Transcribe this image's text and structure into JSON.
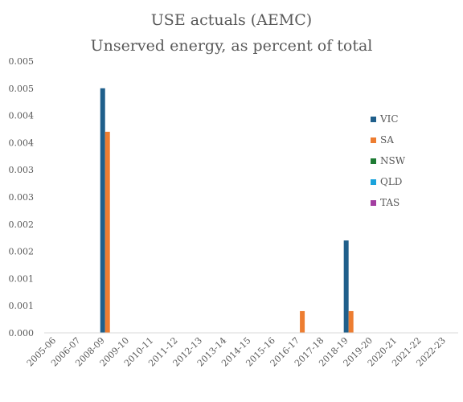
{
  "chart_data": {
    "type": "bar",
    "title": "USE actuals (AEMC)",
    "subtitle": "Unserved energy, as percent of total",
    "xlabel": "",
    "ylabel": "",
    "categories": [
      "2005-06",
      "2006-07",
      "2008-09",
      "2009-10",
      "2010-11",
      "2011-12",
      "2012-13",
      "2013-14",
      "2014-15",
      "2015-16",
      "2016-17",
      "2017-18",
      "2018-19",
      "2019-20",
      "2020-21",
      "2021-22",
      "2022-23"
    ],
    "y_tick_values": [
      0,
      0.0005,
      0.001,
      0.0015,
      0.002,
      0.0025,
      0.003,
      0.0035,
      0.004,
      0.0045,
      0.005
    ],
    "y_tick_labels": [
      "0.000",
      "0.001",
      "0.001",
      "0.002",
      "0.002",
      "0.003",
      "0.003",
      "0.004",
      "0.004",
      "0.005",
      "0.005"
    ],
    "ylim": [
      0,
      0.005
    ],
    "grid": false,
    "legend_position": "right",
    "series": [
      {
        "name": "VIC",
        "color": "#1f5f8b",
        "values": [
          0,
          0,
          0.0045,
          0,
          0,
          0,
          0,
          0,
          0,
          0,
          0,
          0,
          0.0017,
          0,
          0,
          0,
          0
        ]
      },
      {
        "name": "SA",
        "color": "#ed7d31",
        "values": [
          0,
          0,
          0.0037,
          0,
          0,
          0,
          0,
          0,
          0,
          0,
          0.0004,
          0,
          0.0004,
          0,
          0,
          0,
          0
        ]
      },
      {
        "name": "NSW",
        "color": "#1e7b34",
        "values": [
          0,
          0,
          0,
          0,
          0,
          0,
          0,
          0,
          0,
          0,
          0,
          0,
          0,
          0,
          0,
          0,
          0
        ]
      },
      {
        "name": "QLD",
        "color": "#1aa3dc",
        "values": [
          0,
          0,
          0,
          0,
          0,
          0,
          0,
          0,
          0,
          0,
          0,
          0,
          0,
          0,
          0,
          0,
          0
        ]
      },
      {
        "name": "TAS",
        "color": "#a33ea1",
        "values": [
          0,
          0,
          0,
          0,
          0,
          0,
          0,
          0,
          0,
          0,
          0,
          0,
          0,
          0,
          0,
          0,
          0
        ]
      }
    ]
  }
}
